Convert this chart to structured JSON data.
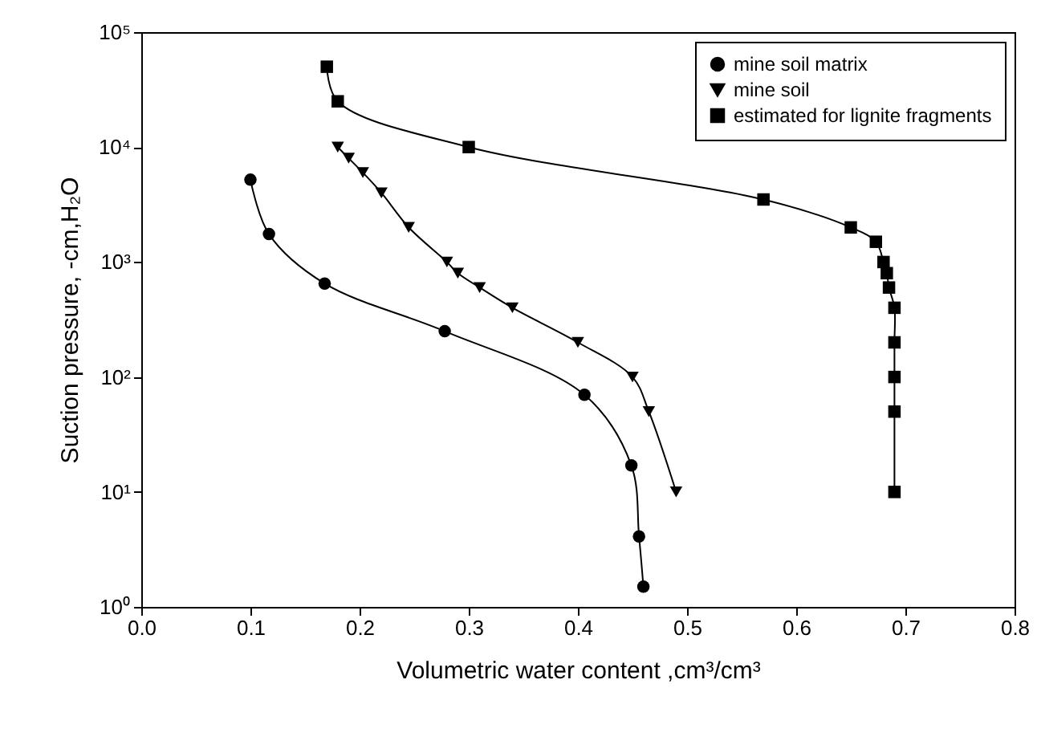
{
  "chart_data": {
    "type": "line",
    "xlabel": "Volumetric water content ,cm³/cm³",
    "ylabel": "Suction pressure, -cm,H₂O",
    "log": "y",
    "grid": false,
    "legend": "top right",
    "line_style": "solid",
    "xlim": [
      0.0,
      0.8
    ],
    "xticks": [
      {
        "value": 0,
        "label": "0.0"
      },
      0.1,
      0.2,
      0.3,
      0.4,
      0.5,
      0.6,
      0.7,
      0.8
    ],
    "ylim": [
      1,
      100000
    ],
    "yticks": [
      {
        "value": 1,
        "label": "10⁰"
      },
      {
        "value": 10,
        "label": "10¹"
      },
      {
        "value": 100,
        "label": "10²"
      },
      {
        "value": 1000,
        "label": "10³"
      },
      {
        "value": 10000,
        "label": "10⁴"
      },
      {
        "value": 100000,
        "label": "10⁵"
      }
    ],
    "series": [
      {
        "name": "mine soil matrix",
        "color": "#000000",
        "marker": "circle",
        "x": [
          0.1,
          0.117,
          0.168,
          0.278,
          0.406,
          0.449,
          0.456,
          0.46
        ],
        "values": [
          5200,
          1750,
          650,
          250,
          70,
          17,
          4.1,
          1.5
        ]
      },
      {
        "name": "mine soil",
        "color": "#000000",
        "marker": "triangle",
        "x": [
          0.18,
          0.19,
          0.203,
          0.22,
          0.245,
          0.28,
          0.29,
          0.31,
          0.34,
          0.4,
          0.45,
          0.465,
          0.49
        ],
        "values": [
          10000,
          8000,
          6000,
          4000,
          2000,
          1000,
          800,
          600,
          400,
          200,
          100,
          50,
          10
        ]
      },
      {
        "name": "estimated for lignite fragments",
        "color": "#000000",
        "marker": "square",
        "x": [
          0.17,
          0.18,
          0.3,
          0.57,
          0.65,
          0.673,
          0.68,
          0.683,
          0.685,
          0.69,
          0.69,
          0.69,
          0.69,
          0.69
        ],
        "values": [
          50000,
          25000,
          10000,
          3500,
          2000,
          1500,
          1000,
          800,
          600,
          400,
          200,
          100,
          50,
          10
        ]
      }
    ]
  }
}
